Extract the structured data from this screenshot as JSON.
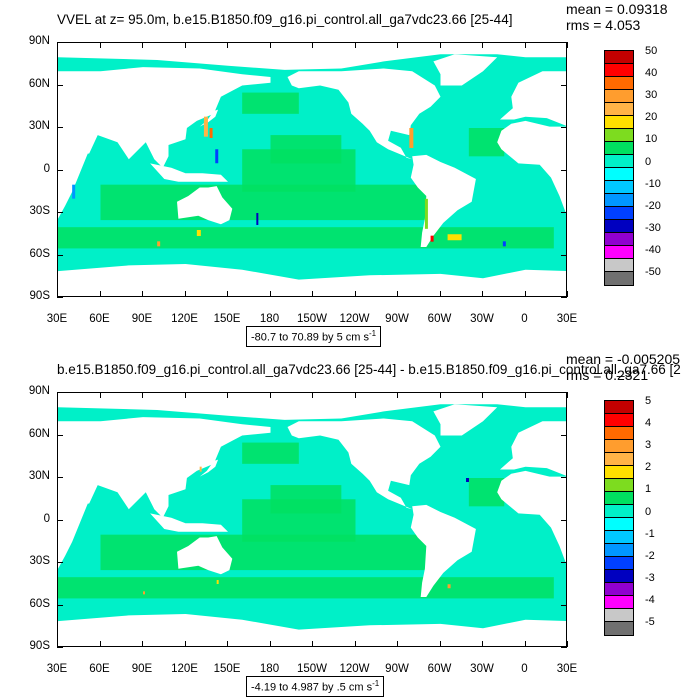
{
  "top": {
    "title": "VVEL at z=  95.0m, b.e15.B1850.f09_g16.pi_control.all_ga7vdc23.66 [25-44]",
    "mean": "mean = 0.09318",
    "rms": "rms = 4.053",
    "range": "-80.7 to 70.89 by 5 cm s",
    "range_sup": "-1",
    "colorbar_labels": [
      "50",
      "40",
      "30",
      "20",
      "10",
      "0",
      "-10",
      "-20",
      "-30",
      "-40",
      "-50"
    ]
  },
  "bottom": {
    "title": "b.e15.B1850.f09_g16.pi_control.all_ga7vdc23.66 [25-44] - b.e15.B1850.f09_g16.pi_control.all_ga7.66 [2",
    "mean": "mean = -0.005205",
    "rms": "rms = 0.2321",
    "range": "-4.19 to 4.987 by .5 cm s",
    "range_sup": "-1",
    "colorbar_labels": [
      "5",
      "4",
      "3",
      "2",
      "1",
      "0",
      "-1",
      "-2",
      "-3",
      "-4",
      "-5"
    ]
  },
  "axes": {
    "lat_labels": [
      "90N",
      "60N",
      "30N",
      "0",
      "30S",
      "60S",
      "90S"
    ],
    "lon_labels": [
      "30E",
      "60E",
      "90E",
      "120E",
      "150E",
      "180",
      "150W",
      "120W",
      "90W",
      "60W",
      "30W",
      "0",
      "30E"
    ]
  },
  "colors": {
    "palette": [
      "#c40000",
      "#ff0000",
      "#ff6a00",
      "#ff9d2e",
      "#ffb347",
      "#ffe000",
      "#7ddc1f",
      "#00e060",
      "#00f0c8",
      "#00ffff",
      "#00c8ff",
      "#0096ff",
      "#0040ff",
      "#0000c0",
      "#9000d0",
      "#ff00ff",
      "#c8c8c8",
      "#707070"
    ]
  },
  "chart_data": [
    {
      "type": "heatmap",
      "title": "VVEL at z=  95.0m, b.e15.B1850.f09_g16.pi_control.all_ga7vdc23.66 [25-44]",
      "xlim": [
        30,
        390
      ],
      "ylim": [
        -90,
        90
      ],
      "colorbar_levels": [
        50,
        45,
        40,
        35,
        30,
        25,
        20,
        15,
        10,
        5,
        0,
        -5,
        -10,
        -15,
        -20,
        -25,
        -30,
        -35,
        -40,
        -45,
        -50
      ],
      "mean": 0.09318,
      "rms": 4.053,
      "data_range": [
        -80.7,
        70.89
      ],
      "contour_interval": 5,
      "units": "cm s-1"
    },
    {
      "type": "heatmap",
      "title": "b.e15.B1850.f09_g16.pi_control.all_ga7vdc23.66 [25-44] - b.e15.B1850.f09_g16.pi_control.all_ga7.66 [2",
      "xlim": [
        30,
        390
      ],
      "ylim": [
        -90,
        90
      ],
      "colorbar_levels": [
        5,
        4.5,
        4,
        3.5,
        3,
        2.5,
        2,
        1.5,
        1,
        0.5,
        0,
        -0.5,
        -1,
        -1.5,
        -2,
        -2.5,
        -3,
        -3.5,
        -4,
        -4.5,
        -5
      ],
      "mean": -0.005205,
      "rms": 0.2321,
      "data_range": [
        -4.19,
        4.987
      ],
      "contour_interval": 0.5,
      "units": "cm s-1"
    }
  ]
}
